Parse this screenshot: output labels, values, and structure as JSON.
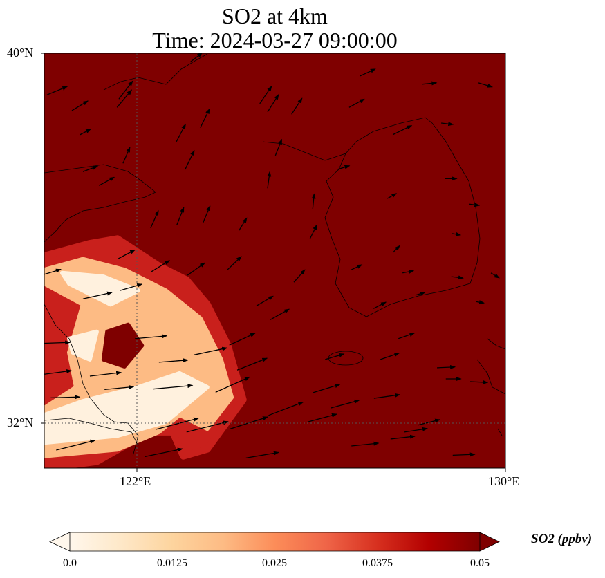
{
  "title": {
    "line1": "SO2 at 4km",
    "line2": "Time: 2024-03-27 09:00:00"
  },
  "colors": {
    "background_max": "#7f0000",
    "scale": [
      "#fff7ec",
      "#fee8c8",
      "#fdd49e",
      "#fdbb84",
      "#fc8d59",
      "#ef6548",
      "#d7301f",
      "#b30000",
      "#7f0000"
    ]
  },
  "axes": {
    "lat_ticks": [
      {
        "value": 40,
        "label": "40°N"
      },
      {
        "value": 32,
        "label": "32°N"
      }
    ],
    "lon_ticks": [
      {
        "value": 122,
        "label": "122°E"
      },
      {
        "value": 130,
        "label": "130°E"
      }
    ]
  },
  "colorbar": {
    "label": "SO2 (ppbv)",
    "min": 0,
    "max": 0.05,
    "extend": "both",
    "ticks": [
      {
        "value": 0,
        "label": "0.0"
      },
      {
        "value": 0.0125,
        "label": "0.0125"
      },
      {
        "value": 0.025,
        "label": "0.025"
      },
      {
        "value": 0.0375,
        "label": "0.0375"
      },
      {
        "value": 0.05,
        "label": "0.05"
      }
    ]
  },
  "chart_data": {
    "type": "heatmap",
    "title": "SO2 at 4km / Time: 2024-03-27 09:00:00",
    "extent": {
      "lon": [
        120,
        130
      ],
      "lat": [
        31.03,
        40
      ]
    },
    "units": "ppbv",
    "so2_field": [
      {
        "level": 0.04,
        "color": "#c9201c",
        "polygon": [
          [
            120.0,
            35.62
          ],
          [
            120.99,
            35.89
          ],
          [
            121.59,
            35.99
          ],
          [
            122.49,
            35.4
          ],
          [
            123.09,
            35.1
          ],
          [
            123.54,
            34.57
          ],
          [
            123.99,
            33.68
          ],
          [
            124.32,
            32.51
          ],
          [
            123.54,
            31.44
          ],
          [
            123.02,
            31.29
          ],
          [
            122.79,
            31.81
          ],
          [
            122.27,
            31.81
          ],
          [
            121.74,
            31.51
          ],
          [
            121.14,
            31.17
          ],
          [
            120.0,
            31.03
          ]
        ]
      },
      {
        "level": 0.02,
        "color": "#fdbb84",
        "polygon": [
          [
            120.0,
            35.32
          ],
          [
            120.84,
            35.55
          ],
          [
            121.74,
            35.32
          ],
          [
            122.64,
            34.87
          ],
          [
            123.39,
            34.27
          ],
          [
            123.84,
            33.38
          ],
          [
            124.07,
            32.56
          ],
          [
            123.54,
            31.88
          ],
          [
            122.94,
            32.18
          ],
          [
            122.49,
            31.81
          ],
          [
            121.59,
            31.43
          ],
          [
            120.0,
            31.29
          ],
          [
            120.0,
            32.33
          ],
          [
            120.69,
            32.78
          ],
          [
            120.54,
            33.53
          ],
          [
            120.84,
            34.57
          ],
          [
            120.0,
            35.02
          ]
        ]
      },
      {
        "level": 0.005,
        "color": "#fff1de",
        "polygon": [
          [
            120.39,
            35.25
          ],
          [
            121.29,
            35.17
          ],
          [
            122.04,
            34.87
          ],
          [
            121.44,
            34.57
          ],
          [
            120.54,
            35.02
          ]
        ]
      },
      {
        "level": 0.005,
        "color": "#fff1de",
        "polygon": [
          [
            120.84,
            32.48
          ],
          [
            122.04,
            32.78
          ],
          [
            122.94,
            33.08
          ],
          [
            123.54,
            32.78
          ],
          [
            122.64,
            32.03
          ],
          [
            121.59,
            31.73
          ],
          [
            120.0,
            31.58
          ],
          [
            120.0,
            32.18
          ]
        ]
      },
      {
        "level": 0.005,
        "color": "#fff1de",
        "polygon": [
          [
            120.54,
            33.83
          ],
          [
            121.14,
            33.98
          ],
          [
            120.99,
            33.38
          ],
          [
            120.62,
            33.53
          ]
        ]
      },
      {
        "level": 0.05,
        "color": "#7f0000",
        "polygon": [
          [
            121.37,
            33.98
          ],
          [
            121.82,
            34.13
          ],
          [
            122.12,
            33.68
          ],
          [
            121.74,
            33.23
          ],
          [
            121.29,
            33.38
          ]
        ]
      }
    ],
    "wind_vectors_lon_lat_u_v": [
      [
        120.06,
        39.1,
        7.3,
        3.0
      ],
      [
        120.6,
        38.76,
        5.8,
        3.5
      ],
      [
        121.58,
        38.83,
        5.3,
        6.3
      ],
      [
        121.62,
        39.01,
        5.0,
        6.5
      ],
      [
        122.87,
        38.09,
        3.3,
        6.3
      ],
      [
        123.39,
        38.39,
        3.3,
        6.8
      ],
      [
        124.68,
        38.91,
        4.3,
        6.3
      ],
      [
        124.85,
        38.73,
        4.0,
        6.3
      ],
      [
        125.37,
        38.68,
        3.8,
        5.8
      ],
      [
        126.62,
        38.83,
        5.5,
        3.0
      ],
      [
        126.86,
        39.51,
        5.5,
        2.5
      ],
      [
        128.2,
        39.33,
        5.3,
        0.5
      ],
      [
        129.43,
        39.36,
        5.0,
        -1.5
      ],
      [
        123.17,
        39.81,
        4.3,
        3.3
      ],
      [
        127.57,
        38.24,
        6.8,
        3.3
      ],
      [
        128.62,
        38.49,
        4.3,
        -0.5
      ],
      [
        120.78,
        38.24,
        3.8,
        2.0
      ],
      [
        120.84,
        37.44,
        5.3,
        2.0
      ],
      [
        121.19,
        37.14,
        5.5,
        3.0
      ],
      [
        121.71,
        37.62,
        2.5,
        5.8
      ],
      [
        123.06,
        37.49,
        3.3,
        6.8
      ],
      [
        125.02,
        37.79,
        2.3,
        5.8
      ],
      [
        124.85,
        37.08,
        0.8,
        6.0
      ],
      [
        126.37,
        37.49,
        4.3,
        1.3
      ],
      [
        127.45,
        36.86,
        3.3,
        1.8
      ],
      [
        128.7,
        37.29,
        4.3,
        0
      ],
      [
        129.22,
        36.74,
        3.8,
        -0.5
      ],
      [
        122.31,
        36.22,
        2.8,
        6.3
      ],
      [
        122.88,
        36.29,
        2.5,
        6.3
      ],
      [
        123.45,
        36.34,
        2.5,
        6.0
      ],
      [
        124.23,
        36.17,
        2.8,
        4.5
      ],
      [
        125.77,
        35.99,
        2.5,
        5.0
      ],
      [
        125.83,
        36.63,
        0.5,
        5.5
      ],
      [
        127.57,
        35.69,
        2.5,
        2.5
      ],
      [
        128.86,
        36.1,
        3.0,
        -0.5
      ],
      [
        129.7,
        35.25,
        3.0,
        -1.8
      ],
      [
        121.59,
        35.55,
        6.3,
        3.3
      ],
      [
        122.33,
        35.28,
        6.5,
        4.0
      ],
      [
        123.11,
        35.2,
        6.3,
        4.5
      ],
      [
        123.98,
        35.32,
        5.0,
        4.8
      ],
      [
        125.42,
        35.05,
        4.0,
        4.5
      ],
      [
        126.67,
        35.32,
        3.8,
        1.8
      ],
      [
        127.78,
        35.25,
        4.0,
        0.8
      ],
      [
        128.84,
        35.17,
        4.3,
        -0.5
      ],
      [
        124.61,
        34.54,
        6.0,
        3.5
      ],
      [
        124.91,
        34.24,
        6.8,
        3.8
      ],
      [
        127.15,
        34.48,
        4.5,
        2.3
      ],
      [
        128.06,
        34.77,
        3.5,
        1.0
      ],
      [
        129.37,
        34.63,
        3.0,
        -0.5
      ],
      [
        121.64,
        34.87,
        8.0,
        2.3
      ],
      [
        120.84,
        34.69,
        10.5,
        2.3
      ],
      [
        120.0,
        35.22,
        6.0,
        1.8
      ],
      [
        121.97,
        33.83,
        11.5,
        1.0
      ],
      [
        120.0,
        33.73,
        9.3,
        0.3
      ],
      [
        123.26,
        33.48,
        11.8,
        2.5
      ],
      [
        124.02,
        33.69,
        9.3,
        4.3
      ],
      [
        122.49,
        33.32,
        10.5,
        0.8
      ],
      [
        120.99,
        33.02,
        11.3,
        1.3
      ],
      [
        120.0,
        33.06,
        9.8,
        1.3
      ],
      [
        124.19,
        33.15,
        10.8,
        4.3
      ],
      [
        126.1,
        33.38,
        6.8,
        2.0
      ],
      [
        127.3,
        33.38,
        6.8,
        2.3
      ],
      [
        127.69,
        33.83,
        5.8,
        2.0
      ],
      [
        128.53,
        33.2,
        6.5,
        0.3
      ],
      [
        128.72,
        32.96,
        5.5,
        0
      ],
      [
        129.25,
        32.9,
        6.3,
        -0.3
      ],
      [
        121.31,
        32.73,
        10.5,
        1.0
      ],
      [
        122.36,
        32.74,
        14.3,
        1.3
      ],
      [
        123.72,
        32.67,
        12.3,
        5.5
      ],
      [
        120.14,
        32.55,
        10.5,
        0.3
      ],
      [
        125.83,
        32.66,
        9.8,
        3.0
      ],
      [
        126.22,
        32.33,
        10.3,
        2.8
      ],
      [
        127.16,
        32.54,
        9.3,
        1.3
      ],
      [
        124.87,
        32.17,
        12.5,
        4.8
      ],
      [
        124.04,
        31.88,
        13.5,
        4.3
      ],
      [
        125.72,
        32.03,
        10.5,
        2.8
      ],
      [
        122.43,
        31.87,
        15.3,
        4.0
      ],
      [
        123.09,
        31.81,
        15.0,
        3.8
      ],
      [
        128.11,
        31.96,
        8.0,
        2.0
      ],
      [
        127.82,
        31.81,
        8.3,
        1.3
      ],
      [
        127.52,
        31.66,
        8.8,
        1.0
      ],
      [
        126.67,
        31.51,
        9.8,
        1.0
      ],
      [
        120.26,
        31.42,
        14.0,
        3.5
      ],
      [
        122.19,
        31.28,
        13.5,
        2.8
      ],
      [
        124.38,
        31.25,
        11.8,
        2.0
      ],
      [
        128.87,
        31.31,
        8.0,
        0.3
      ]
    ]
  }
}
